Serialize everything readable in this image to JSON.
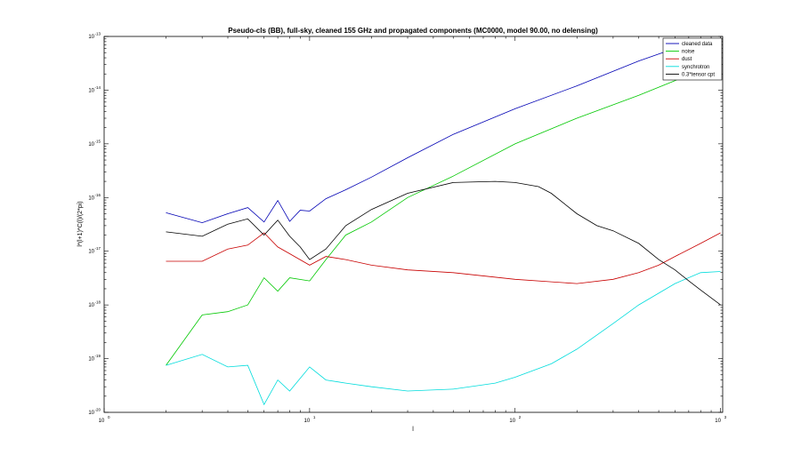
{
  "chart_data": {
    "type": "line",
    "title": "Pseudo-cls (BB), full-sky, cleaned 155 GHz and propagated components (MC0000, model 90.00, no delensing)",
    "xlabel": "l",
    "ylabel": "l*(l+1)*C(l)/(2*pi)",
    "xscale": "log",
    "yscale": "log",
    "xlim": [
      1,
      1024
    ],
    "ylim": [
      1e-20,
      1e-13
    ],
    "grid": false,
    "legend_position": "top-right",
    "x_ticks": [
      {
        "base": "10",
        "exp": "0"
      },
      {
        "base": "10",
        "exp": "1"
      },
      {
        "base": "10",
        "exp": "2"
      },
      {
        "base": "10",
        "exp": "3"
      }
    ],
    "y_ticks": [
      {
        "base": "10",
        "exp": "-20"
      },
      {
        "base": "10",
        "exp": "-19"
      },
      {
        "base": "10",
        "exp": "-18"
      },
      {
        "base": "10",
        "exp": "-17"
      },
      {
        "base": "10",
        "exp": "-16"
      },
      {
        "base": "10",
        "exp": "-15"
      },
      {
        "base": "10",
        "exp": "-14"
      },
      {
        "base": "10",
        "exp": "-13"
      }
    ],
    "series": [
      {
        "name": "cleaned data",
        "color": "#0000b4",
        "x": [
          2,
          3,
          4,
          5,
          6,
          7,
          8,
          9,
          10,
          12,
          15,
          20,
          30,
          50,
          100,
          200,
          400,
          600,
          800,
          1000
        ],
        "y": [
          5.2e-17,
          3.4e-17,
          5e-17,
          6.5e-17,
          3.5e-17,
          8.8e-17,
          3.6e-17,
          5.8e-17,
          5.6e-17,
          9.5e-17,
          1.4e-16,
          2.4e-16,
          5.5e-16,
          1.5e-15,
          4.5e-15,
          1.2e-14,
          3.5e-14,
          6e-14,
          7.5e-14,
          8.5e-14
        ]
      },
      {
        "name": "noise",
        "color": "#00c800",
        "x": [
          2,
          3,
          4,
          5,
          6,
          7,
          8,
          10,
          12,
          15,
          20,
          30,
          50,
          100,
          200,
          400,
          600,
          800,
          1000
        ],
        "y": [
          7.5e-20,
          6.5e-19,
          7.5e-19,
          1e-18,
          3.2e-18,
          1.8e-18,
          3.2e-18,
          2.8e-18,
          7e-18,
          2e-17,
          3.5e-17,
          1e-16,
          2.5e-16,
          1e-15,
          3e-15,
          8e-15,
          1.5e-14,
          2.6e-14,
          4.5e-14
        ]
      },
      {
        "name": "dust",
        "color": "#c80000",
        "x": [
          2,
          3,
          4,
          5,
          6,
          7,
          8,
          10,
          12,
          15,
          20,
          30,
          50,
          100,
          150,
          200,
          300,
          400,
          500,
          600,
          800,
          1000
        ],
        "y": [
          6.5e-18,
          6.5e-18,
          1.1e-17,
          1.3e-17,
          2.2e-17,
          1.2e-17,
          9e-18,
          5.5e-18,
          8e-18,
          7e-18,
          5.5e-18,
          4.5e-18,
          4e-18,
          3e-18,
          2.7e-18,
          2.5e-18,
          3e-18,
          4e-18,
          5.5e-18,
          8e-18,
          1.4e-17,
          2.2e-17
        ]
      },
      {
        "name": "synchrotron",
        "color": "#00dcdc",
        "x": [
          2,
          3,
          4,
          5,
          6,
          7,
          8,
          10,
          12,
          15,
          20,
          30,
          50,
          80,
          100,
          150,
          200,
          300,
          400,
          600,
          800,
          1000
        ],
        "y": [
          7.5e-20,
          1.2e-19,
          7e-20,
          7.5e-20,
          1.4e-20,
          4e-20,
          2.5e-20,
          7e-20,
          4e-20,
          3.5e-20,
          3e-20,
          2.5e-20,
          2.7e-20,
          3.5e-20,
          4.5e-20,
          8e-20,
          1.5e-19,
          4.5e-19,
          1e-18,
          2.5e-18,
          4e-18,
          4.2e-18
        ]
      },
      {
        "name": "0.3*tensor cpt",
        "color": "#000000",
        "x": [
          2,
          3,
          4,
          5,
          6,
          7,
          8,
          9,
          10,
          12,
          15,
          20,
          30,
          50,
          80,
          100,
          130,
          150,
          200,
          250,
          300,
          400,
          500,
          600,
          700,
          800,
          1000
        ],
        "y": [
          2.3e-17,
          1.9e-17,
          3.2e-17,
          4e-17,
          2e-17,
          3.8e-17,
          1.9e-17,
          1.2e-17,
          7e-18,
          1.1e-17,
          3e-17,
          6e-17,
          1.2e-16,
          1.9e-16,
          2e-16,
          1.9e-16,
          1.6e-16,
          1.2e-16,
          5e-17,
          3e-17,
          2.4e-17,
          1.4e-17,
          7e-18,
          4.5e-18,
          2.8e-18,
          1.9e-18,
          1e-18
        ]
      }
    ]
  }
}
